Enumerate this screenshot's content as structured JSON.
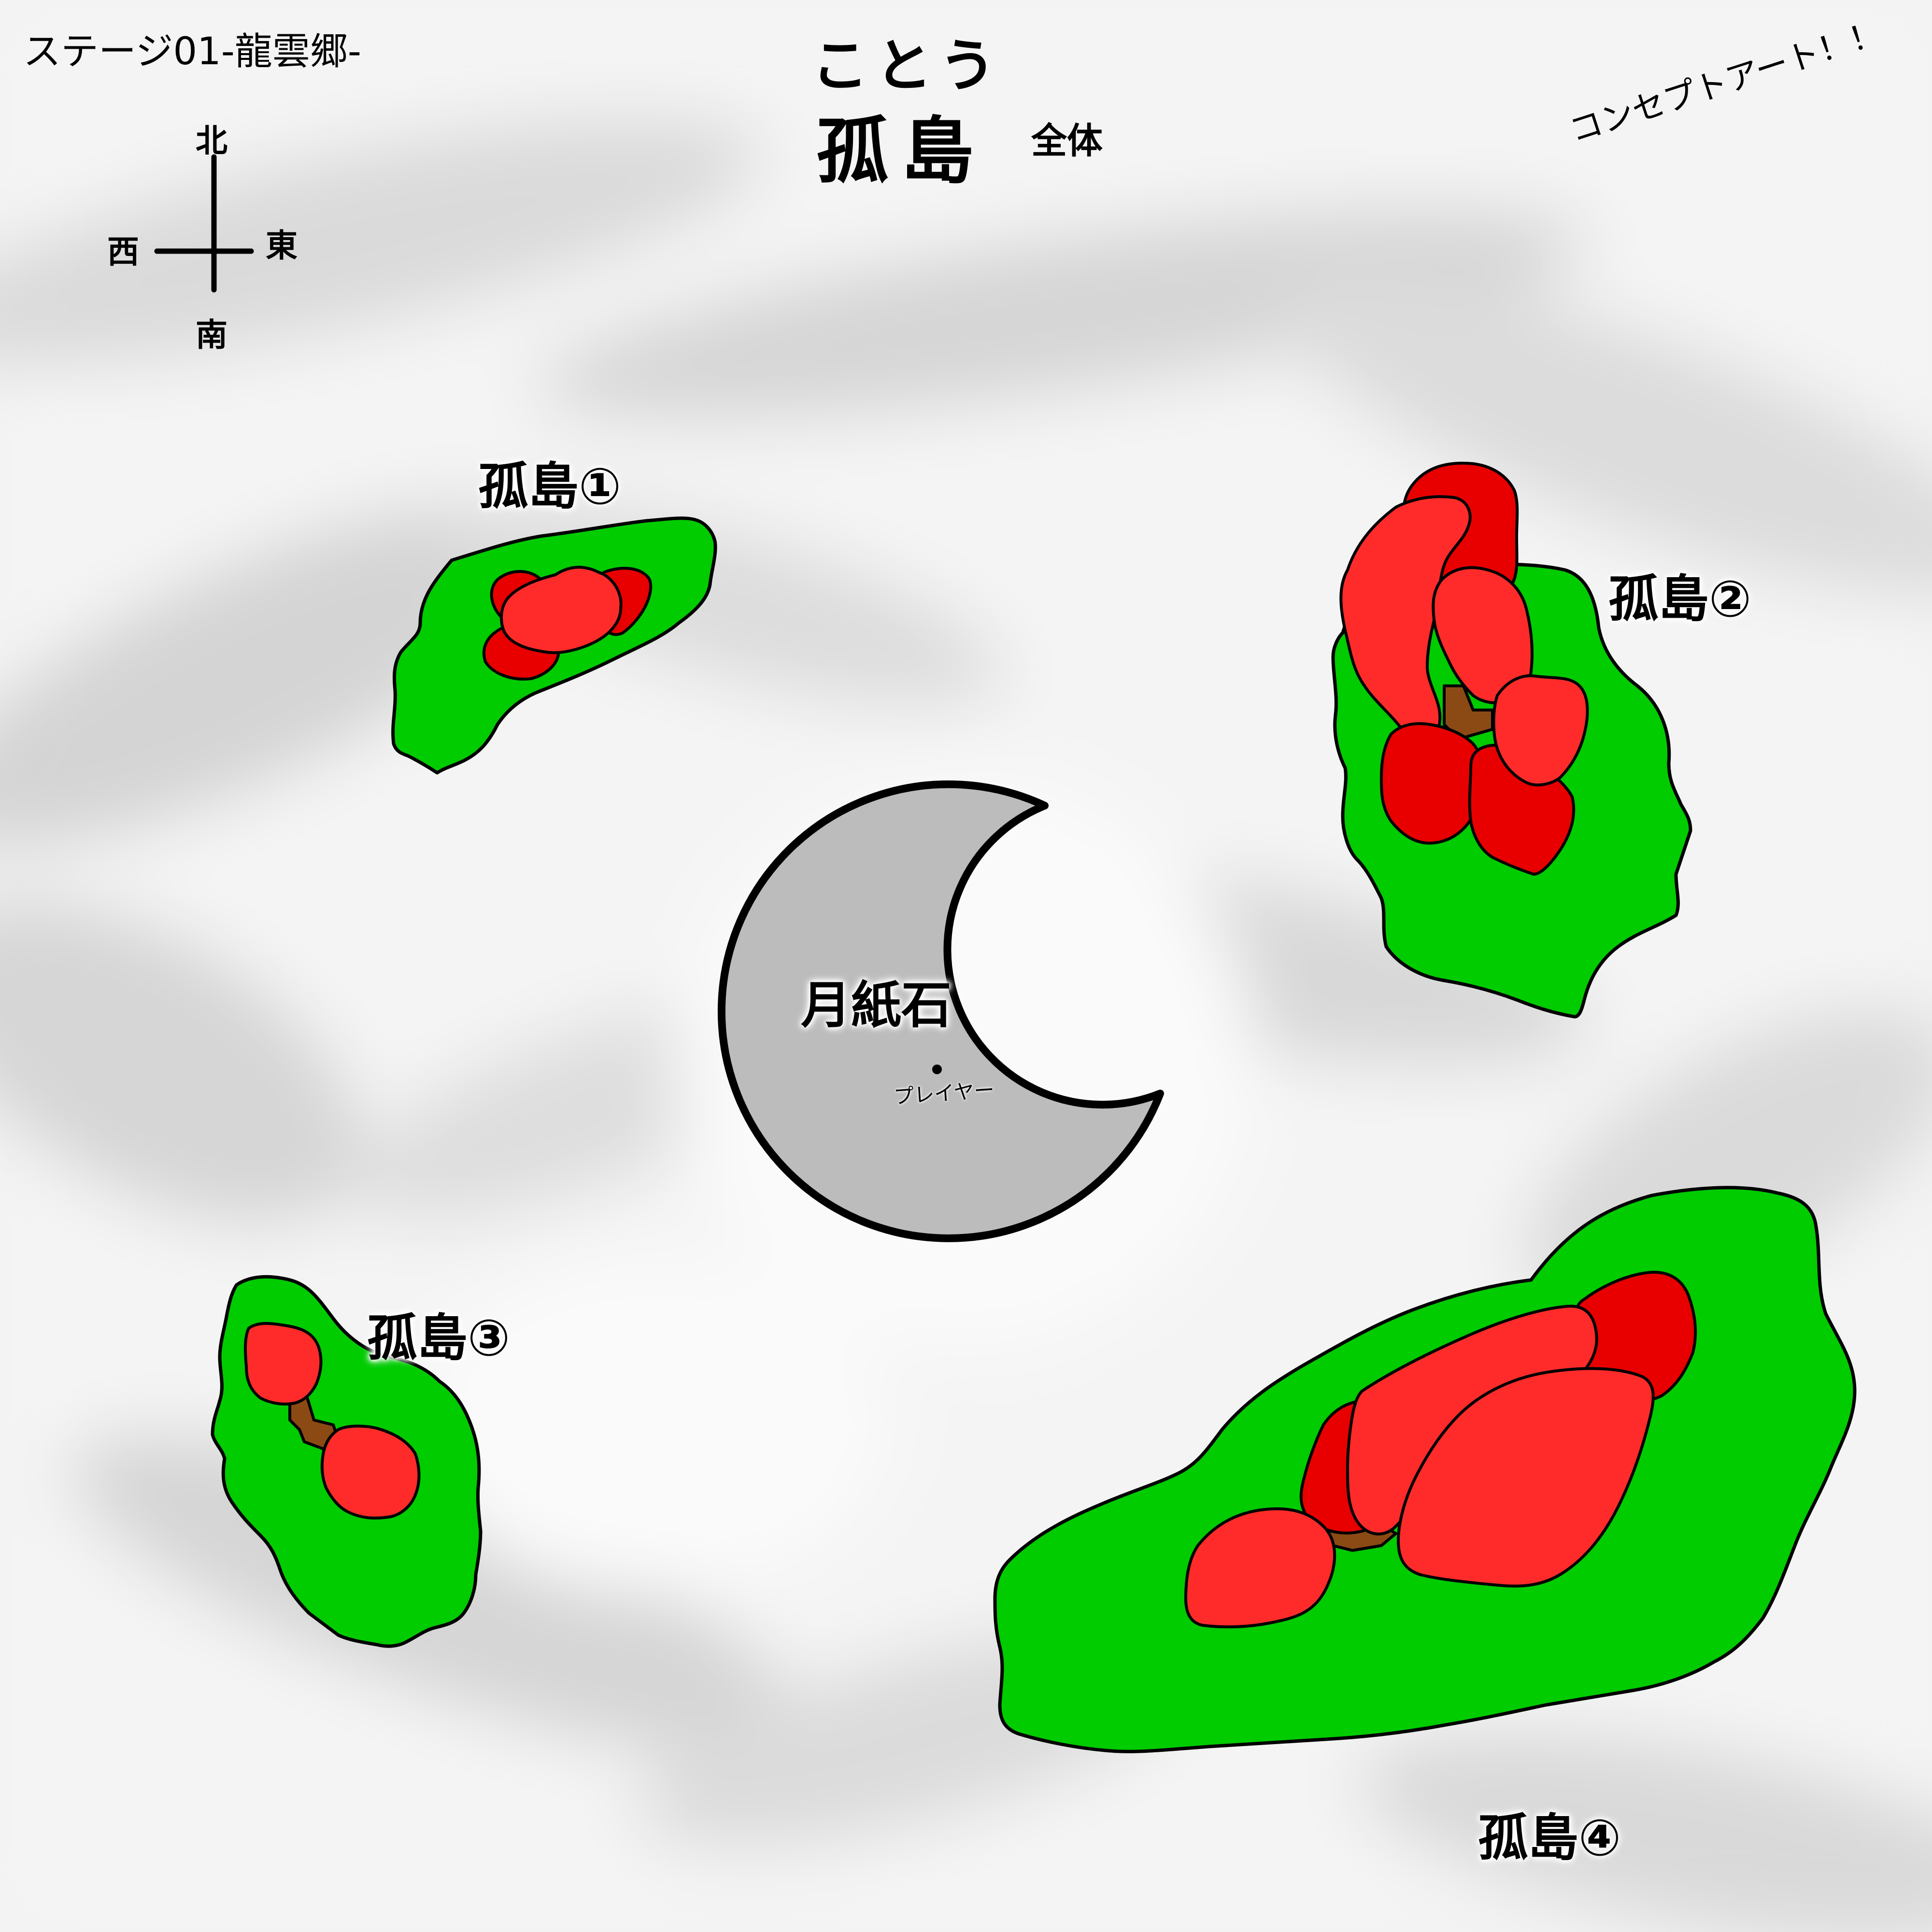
{
  "stage_title": "ステージ01-龍雲郷-",
  "heading": {
    "ruby": "ことう",
    "title": "孤島",
    "suffix": "全体"
  },
  "note": "コンセプトアート！！",
  "compass": {
    "north": "北",
    "south": "南",
    "east": "東",
    "west": "西",
    "scale_glyph": "4"
  },
  "islands": [
    {
      "id": 1,
      "label": "孤島①"
    },
    {
      "id": 2,
      "label": "孤島②"
    },
    {
      "id": 3,
      "label": "孤島③"
    },
    {
      "id": 4,
      "label": "孤島④"
    }
  ],
  "moon_stone": {
    "label": "月紙石",
    "player_label": "プレイヤー"
  },
  "colors": {
    "sea_cloud": "#f2f2f2",
    "island_grass": "#00cc00",
    "tree_light": "#ff2b2b",
    "tree_dark": "#e80000",
    "trunk": "#8b4a14",
    "moon_stone": "#bcbcbc",
    "outline": "#000000"
  }
}
